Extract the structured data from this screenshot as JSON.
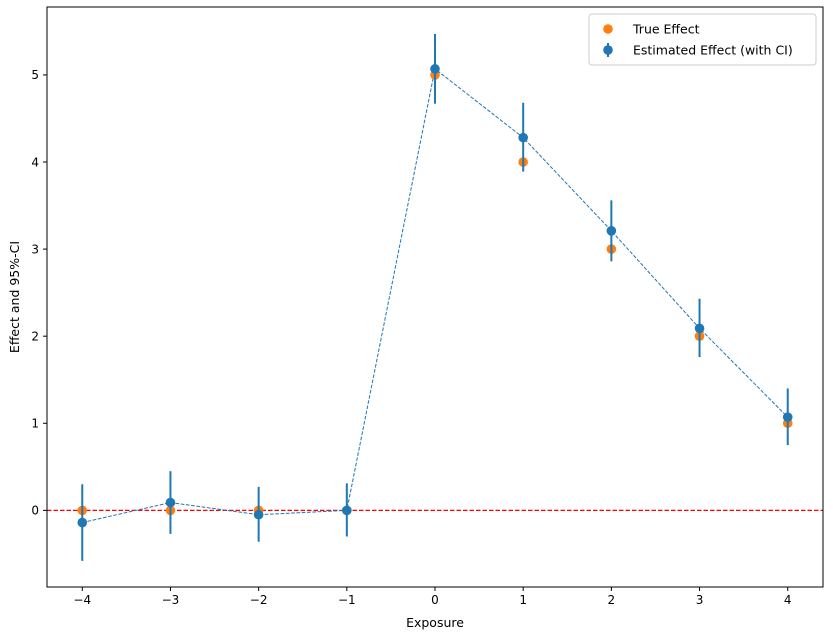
{
  "chart_data": {
    "type": "scatter",
    "xlabel": "Exposure",
    "ylabel": "Effect and 95%-CI",
    "xlim": [
      -4.4,
      4.4
    ],
    "ylim": [
      -0.88,
      5.78
    ],
    "x_ticks": [
      -4,
      -3,
      -2,
      -1,
      0,
      1,
      2,
      3,
      4
    ],
    "x_tick_labels": [
      "−4",
      "−3",
      "−2",
      "−1",
      "0",
      "1",
      "2",
      "3",
      "4"
    ],
    "y_ticks": [
      0,
      1,
      2,
      3,
      4,
      5
    ],
    "y_tick_labels": [
      "0",
      "1",
      "2",
      "3",
      "4",
      "5"
    ],
    "grid": false,
    "reference_line": {
      "y": 0,
      "color": "#ff0000",
      "style": "dashed"
    },
    "legend": {
      "position": "top-right",
      "entries": [
        {
          "label": "True Effect",
          "color": "#ff7f0e",
          "marker": "circle"
        },
        {
          "label": "Estimated Effect (with CI)",
          "color": "#1f77b4",
          "marker": "circle-errorbar"
        }
      ]
    },
    "series": [
      {
        "name": "True Effect",
        "color": "#ff7f0e",
        "x": [
          -4,
          -3,
          -2,
          -1,
          0,
          1,
          2,
          3,
          4
        ],
        "y": [
          0,
          0,
          0,
          0,
          5,
          4,
          3,
          2,
          1
        ]
      },
      {
        "name": "Estimated Effect (with CI)",
        "color": "#1f77b4",
        "line_style": "dashed",
        "x": [
          -4,
          -3,
          -2,
          -1,
          0,
          1,
          2,
          3,
          4
        ],
        "y": [
          -0.14,
          0.09,
          -0.05,
          0.0,
          5.07,
          4.28,
          3.21,
          2.09,
          1.07
        ],
        "ci_lower": [
          -0.58,
          -0.27,
          -0.36,
          -0.3,
          4.67,
          3.89,
          2.86,
          1.76,
          0.75
        ],
        "ci_upper": [
          0.3,
          0.45,
          0.27,
          0.31,
          5.47,
          4.68,
          3.56,
          2.43,
          1.4
        ]
      }
    ]
  }
}
